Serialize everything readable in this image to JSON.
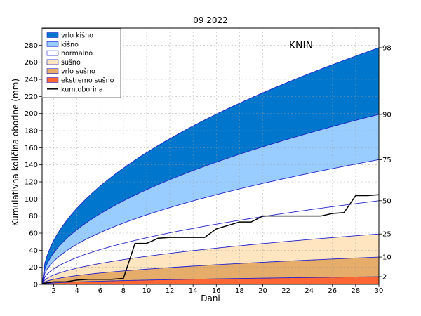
{
  "chart_data": {
    "type": "area",
    "title": "09 2022",
    "station": "KNIN",
    "xlabel": "Dani",
    "ylabel": "Kumulativna količina oborine (mm)",
    "xlim": [
      1,
      30
    ],
    "ylim": [
      0,
      300
    ],
    "xticks": [
      2,
      4,
      6,
      8,
      10,
      12,
      14,
      16,
      18,
      20,
      22,
      24,
      26,
      28,
      30
    ],
    "yticks": [
      0,
      20,
      40,
      60,
      80,
      100,
      120,
      140,
      160,
      180,
      200,
      220,
      240,
      260,
      280
    ],
    "grid": true,
    "legend_position": "top-left",
    "percentiles": [
      {
        "label": "98",
        "endvalue": 277
      },
      {
        "label": "90",
        "endvalue": 199
      },
      {
        "label": "75",
        "endvalue": 146
      },
      {
        "label": "50",
        "endvalue": 98
      },
      {
        "label": "25",
        "endvalue": 59
      },
      {
        "label": "10",
        "endvalue": 32
      },
      {
        "label": "2",
        "endvalue": 9
      }
    ],
    "bands": [
      {
        "name": "vrlo kišno",
        "color": "#0077cc",
        "from": "90",
        "to": "98"
      },
      {
        "name": "kišno",
        "color": "#99ccff",
        "from": "75",
        "to": "90"
      },
      {
        "name": "normalno",
        "color": "#ffffff",
        "from": "25",
        "to": "75"
      },
      {
        "name": "sušno",
        "color": "#ffe5c0",
        "from": "10",
        "to": "25"
      },
      {
        "name": "vrlo sušno",
        "color": "#e6ad6a",
        "from": "2",
        "to": "10"
      },
      {
        "name": "ekstremo sušno",
        "color": "#ff6633",
        "from": "0",
        "to": "2"
      }
    ],
    "series": [
      {
        "name": "kum.oborina",
        "color": "#000000",
        "x": [
          1,
          2,
          3,
          4,
          5,
          6,
          7,
          8,
          9,
          10,
          11,
          12,
          13,
          14,
          15,
          16,
          17,
          18,
          19,
          20,
          21,
          22,
          23,
          24,
          25,
          26,
          27,
          28,
          29,
          30
        ],
        "values": [
          1,
          3,
          3,
          5,
          6,
          6,
          6,
          7,
          48,
          48,
          54,
          55,
          55,
          55,
          55,
          65,
          69,
          73,
          73,
          80,
          80,
          80,
          80,
          80,
          80,
          83,
          84,
          104,
          104,
          105
        ]
      }
    ]
  }
}
